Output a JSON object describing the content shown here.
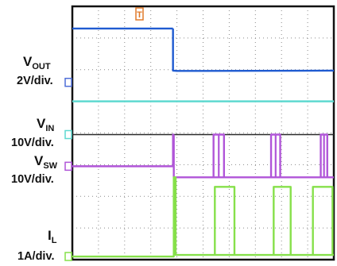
{
  "chart_data": {
    "type": "line",
    "title": "",
    "xlabel": "",
    "ylabel": "",
    "grid": true,
    "grid_divisions": {
      "x": 10,
      "y": 8
    },
    "x_range_div": [
      0,
      10
    ],
    "trigger_marker": "T",
    "channels": [
      {
        "id": "vout",
        "name_main": "V",
        "name_sub": "OUT",
        "scale": "2V/div.",
        "color": "#1f5bd1",
        "marker_color": "#4f6ed8",
        "ground_div": 5.6,
        "segments": [
          {
            "x": [
              0,
              3.85
            ],
            "y": [
              7.3,
              7.3
            ]
          },
          {
            "x": [
              3.85,
              3.85,
              4.0,
              10.0
            ],
            "y": [
              7.3,
              5.97,
              5.96,
              5.97
            ]
          }
        ]
      },
      {
        "id": "cyan",
        "name_main": "",
        "name_sub": "",
        "scale": "",
        "color": "#5fd9d0",
        "segments": [
          {
            "x": [
              0,
              10
            ],
            "y": [
              5.0,
              5.0
            ]
          }
        ]
      },
      {
        "id": "vin",
        "name_main": "V",
        "name_sub": "IN",
        "scale": "10V/div.",
        "color": "#2a2a2a",
        "marker_color": "#5fd9d0",
        "ground_div": 3.95,
        "segments": [
          {
            "x": [
              0,
              10
            ],
            "y": [
              3.95,
              3.95
            ]
          }
        ]
      },
      {
        "id": "vsw",
        "name_main": "V",
        "name_sub": "SW",
        "scale": "10V/div.",
        "color": "#b055d8",
        "marker_color": "#b055d8",
        "ground_div": 2.95,
        "segments": [
          {
            "x": [
              0,
              3.85,
              3.85,
              3.88
            ],
            "y": [
              2.95,
              2.95,
              3.95,
              3.95
            ]
          },
          {
            "x": [
              3.88,
              3.88,
              10
            ],
            "y": [
              3.95,
              2.6,
              2.6
            ]
          }
        ],
        "pulses": [
          {
            "x_start": 5.4,
            "x_end": 5.8,
            "y_high": 3.95,
            "y_low": 2.6
          },
          {
            "x_start": 7.6,
            "x_end": 7.95,
            "y_high": 3.95,
            "y_low": 2.6
          },
          {
            "x_start": 9.5,
            "x_end": 9.75,
            "y_high": 3.95,
            "y_low": 2.6
          }
        ]
      },
      {
        "id": "il",
        "name_main": "I",
        "name_sub": "L",
        "scale": "1A/div.",
        "color": "#86e04a",
        "marker_color": "#86e04a",
        "ground_div": 0.1,
        "segments": [
          {
            "x": [
              0,
              3.88,
              3.88,
              3.95,
              3.95,
              10
            ],
            "y": [
              0.1,
              0.1,
              2.6,
              2.6,
              0.15,
              0.15
            ]
          }
        ],
        "pulses": [
          {
            "x_start": 5.45,
            "x_end": 6.2,
            "y_high": 2.3,
            "y_low": 0.15
          },
          {
            "x_start": 7.7,
            "x_end": 8.35,
            "y_high": 2.3,
            "y_low": 0.15
          },
          {
            "x_start": 9.2,
            "x_end": 9.95,
            "y_high": 2.3,
            "y_low": 0.15
          }
        ]
      }
    ]
  }
}
